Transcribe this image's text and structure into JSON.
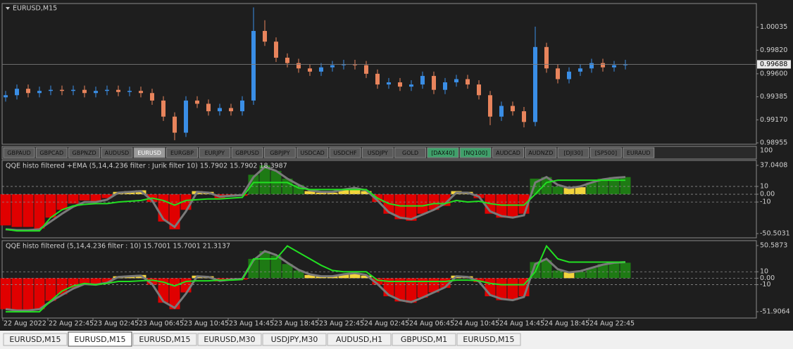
{
  "window": {
    "title": "EURUSD,M15"
  },
  "price_chart": {
    "type": "candlestick",
    "open": [
      0.9938,
      0.994,
      0.9946,
      0.9942,
      0.9944,
      0.9945,
      0.9944,
      0.9945,
      0.9942,
      0.9944,
      0.9945,
      0.9943,
      0.9944,
      0.9942,
      0.9935,
      0.992,
      0.9905,
      0.9935,
      0.9932,
      0.9925,
      0.9928,
      0.9925,
      0.9935,
      1.0,
      0.999,
      0.9975,
      0.997,
      0.9965,
      0.9962,
      0.9966,
      0.9968,
      0.9969,
      0.9968,
      0.996,
      0.995,
      0.9952,
      0.9948,
      0.995,
      0.9958,
      0.9945,
      0.9952,
      0.9955,
      0.995,
      0.994,
      0.992,
      0.993,
      0.9925,
      0.9915,
      0.9985,
      0.9965,
      0.9955,
      0.9962,
      0.9965,
      0.997,
      0.9966,
      0.9968
    ],
    "high": [
      0.9944,
      0.995,
      0.995,
      0.9948,
      0.9949,
      0.9949,
      0.9949,
      0.9949,
      0.9948,
      0.9949,
      0.9949,
      0.9948,
      0.9948,
      0.9946,
      0.9939,
      0.9924,
      0.9939,
      0.9939,
      0.9936,
      0.9932,
      0.9932,
      0.9939,
      1.0022,
      1.001,
      0.9994,
      0.9979,
      0.9974,
      0.9969,
      0.997,
      0.9972,
      0.9973,
      0.9973,
      0.9972,
      0.9964,
      0.9956,
      0.9956,
      0.9954,
      0.9962,
      0.9962,
      0.9956,
      0.9959,
      0.9959,
      0.9954,
      0.9944,
      0.9934,
      0.9934,
      0.9929,
      1.0004,
      0.9989,
      0.9969,
      0.9966,
      0.9969,
      0.9974,
      0.9974,
      0.9972,
      0.9973
    ],
    "low": [
      0.9934,
      0.9936,
      0.9938,
      0.9938,
      0.994,
      0.994,
      0.994,
      0.9938,
      0.9938,
      0.994,
      0.9939,
      0.9939,
      0.9938,
      0.9931,
      0.9916,
      0.9898,
      0.9901,
      0.9928,
      0.9921,
      0.9921,
      0.9921,
      0.9921,
      0.9931,
      0.9986,
      0.9971,
      0.9966,
      0.9961,
      0.9958,
      0.9958,
      0.9962,
      0.9964,
      0.9964,
      0.9956,
      0.9946,
      0.9946,
      0.9944,
      0.9944,
      0.9946,
      0.9941,
      0.9941,
      0.9948,
      0.9946,
      0.9936,
      0.9912,
      0.9916,
      0.9921,
      0.991,
      0.9911,
      0.9961,
      0.9951,
      0.9951,
      0.9958,
      0.9961,
      0.9962,
      0.9962,
      0.9964
    ],
    "close": [
      0.994,
      0.9946,
      0.9942,
      0.9944,
      0.9945,
      0.9944,
      0.9945,
      0.9942,
      0.9944,
      0.9945,
      0.9943,
      0.9944,
      0.9942,
      0.9935,
      0.992,
      0.9905,
      0.9935,
      0.9932,
      0.9925,
      0.9928,
      0.9925,
      0.9935,
      1.0,
      0.999,
      0.9975,
      0.997,
      0.9965,
      0.9962,
      0.9966,
      0.9968,
      0.9969,
      0.9968,
      0.996,
      0.995,
      0.9952,
      0.9948,
      0.995,
      0.9958,
      0.9945,
      0.9952,
      0.9955,
      0.995,
      0.994,
      0.992,
      0.993,
      0.9925,
      0.9915,
      0.9985,
      0.9965,
      0.9955,
      0.9962,
      0.9965,
      0.997,
      0.9966,
      0.9968,
      0.9969
    ],
    "up_color": "#3a8ee6",
    "down_color": "#e8845c",
    "ylim": [
      0.98942,
      1.00256
    ],
    "yticks": [
      1.00035,
      {
        "value": 0.9982,
        "label": "0.99820"
      },
      {
        "value": 0.996,
        "label": "0.99600"
      },
      0.99385,
      {
        "value": 0.9917,
        "label": "0.99170"
      },
      0.98955
    ],
    "current_price": 0.99688
  },
  "symbol_tabs": {
    "items": [
      "GBPAUD",
      "GBPCAD",
      "GBPNZD",
      "AUDUSD",
      "EURUSD",
      "EURGBP",
      "EURJPY",
      "GBPUSD",
      "GBPJPY",
      "USDCAD",
      "USDCHF",
      "USDJPY",
      "GOLD",
      "[DAX40]",
      "[NQ100]",
      "AUDCAD",
      "AUDNZD",
      "[DJI30]",
      "[SP500]",
      "EURAUD"
    ],
    "active": 4,
    "highlighted": [
      13,
      14
    ],
    "scale_label": "100"
  },
  "indicators": [
    {
      "title": "QQE histo filtered +EMA (5,14,4.236 filter : Jurik filter 10) 15.7902 15.7902 18.3987",
      "histogram": [
        -40,
        -42,
        -42,
        -44,
        -30,
        -20,
        -12,
        -8,
        -10,
        -5,
        3,
        4,
        5,
        -10,
        -35,
        -45,
        -20,
        4,
        3,
        -5,
        -3,
        -2,
        25,
        37,
        30,
        20,
        12,
        4,
        2,
        2,
        6,
        8,
        4,
        -10,
        -25,
        -32,
        -34,
        -25,
        -20,
        -15,
        4,
        3,
        -5,
        -25,
        -30,
        -30,
        -25,
        20,
        22,
        10,
        8,
        9,
        15,
        20,
        22,
        22
      ],
      "colors": {
        "negative": "#e00000",
        "weak": "#f2d43c",
        "strong": "#1e7a14"
      },
      "lines": [
        {
          "color": "#7a7a7a",
          "values": [
            -45,
            -46,
            -46,
            -45,
            -35,
            -25,
            -16,
            -10,
            -10,
            -7,
            2,
            3,
            4,
            -8,
            -32,
            -42,
            -22,
            3,
            2,
            -3,
            -2,
            -1,
            22,
            35,
            30,
            20,
            12,
            5,
            3,
            3,
            6,
            8,
            5,
            -8,
            -23,
            -30,
            -32,
            -26,
            -20,
            -12,
            2,
            2,
            -3,
            -22,
            -28,
            -30,
            -27,
            15,
            22,
            12,
            8,
            10,
            15,
            19,
            21,
            22
          ]
        },
        {
          "color": "#22e022",
          "values": [
            -45,
            -47,
            -47,
            -47,
            -30,
            -20,
            -15,
            -13,
            -12,
            -12,
            -10,
            -9,
            -8,
            -5,
            -8,
            -14,
            -8,
            -7,
            -6,
            -6,
            -5,
            -4,
            15,
            15,
            15,
            15,
            8,
            6,
            6,
            6,
            6,
            6,
            6,
            -5,
            -12,
            -15,
            -15,
            -15,
            -12,
            -12,
            -8,
            -10,
            -9,
            -12,
            -14,
            -14,
            -14,
            0,
            15,
            18,
            18,
            18,
            18,
            18,
            18,
            18
          ]
        }
      ],
      "ylim": [
        -55.92,
        43.36
      ],
      "yticks": [
        37.0408,
        10,
        {
          "value": 0,
          "label": "0.00"
        },
        -10,
        -50.5031
      ],
      "levels": [
        10,
        0,
        -10
      ]
    },
    {
      "title": "QQE histo filtered  (5,14,4.236 filter :  10) 15.7001 15.7001 21.3137",
      "histogram": [
        -48,
        -50,
        -50,
        -48,
        -35,
        -25,
        -15,
        -8,
        -10,
        -6,
        3,
        4,
        5,
        -10,
        -38,
        -48,
        -22,
        4,
        3,
        -5,
        -3,
        -2,
        30,
        42,
        35,
        22,
        12,
        5,
        3,
        3,
        6,
        8,
        4,
        -10,
        -28,
        -36,
        -38,
        -30,
        -22,
        -15,
        4,
        3,
        -6,
        -28,
        -34,
        -34,
        -28,
        25,
        28,
        12,
        9,
        10,
        16,
        22,
        24,
        24
      ],
      "colors": {
        "negative": "#e00000",
        "weak": "#f2d43c",
        "strong": "#1e7a14"
      },
      "lines": [
        {
          "color": "#7a7a7a",
          "values": [
            -48,
            -50,
            -50,
            -48,
            -36,
            -26,
            -16,
            -9,
            -10,
            -7,
            2,
            3,
            4,
            -9,
            -36,
            -46,
            -24,
            3,
            2,
            -4,
            -2,
            -1,
            28,
            42,
            36,
            24,
            13,
            6,
            3,
            3,
            6,
            8,
            5,
            -9,
            -26,
            -34,
            -37,
            -30,
            -22,
            -14,
            3,
            2,
            -5,
            -26,
            -32,
            -34,
            -29,
            22,
            30,
            14,
            9,
            11,
            16,
            21,
            24,
            25
          ]
        },
        {
          "color": "#22e022",
          "values": [
            -52,
            -52,
            -52,
            -52,
            -35,
            -20,
            -12,
            -8,
            -10,
            -8,
            -5,
            -5,
            -4,
            -3,
            -6,
            -12,
            -5,
            -4,
            -4,
            -3,
            -3,
            -2,
            30,
            30,
            30,
            50,
            40,
            30,
            20,
            12,
            10,
            10,
            10,
            -3,
            -5,
            -5,
            -5,
            -5,
            -5,
            -5,
            -3,
            -3,
            -4,
            -8,
            -10,
            -10,
            -10,
            10,
            50,
            30,
            25,
            25,
            25,
            25,
            25,
            25
          ]
        }
      ],
      "ylim": [
        -61.72,
        58.22
      ],
      "yticks": [
        50.5873,
        10,
        {
          "value": 0,
          "label": "0.00"
        },
        -10,
        -51.9064
      ],
      "levels": [
        10,
        0,
        -10
      ]
    }
  ],
  "time_labels": [
    "22 Aug 2022",
    "22 Aug 22:45",
    "23 Aug 02:45",
    "23 Aug 06:45",
    "23 Aug 10:45",
    "23 Aug 14:45",
    "23 Aug 18:45",
    "23 Aug 22:45",
    "24 Aug 02:45",
    "24 Aug 06:45",
    "24 Aug 10:45",
    "24 Aug 14:45",
    "24 Aug 18:45",
    "24 Aug 22:45"
  ],
  "bottom_tabs": {
    "items": [
      "EURUSD,M15",
      "EURUSD,M15",
      "EURUSD,M15",
      "EURUSD,M30",
      "USDJPY,M30",
      "AUDUSD,H1",
      "GBPUSD,M1",
      "EURUSD,M15"
    ],
    "active": 1
  }
}
